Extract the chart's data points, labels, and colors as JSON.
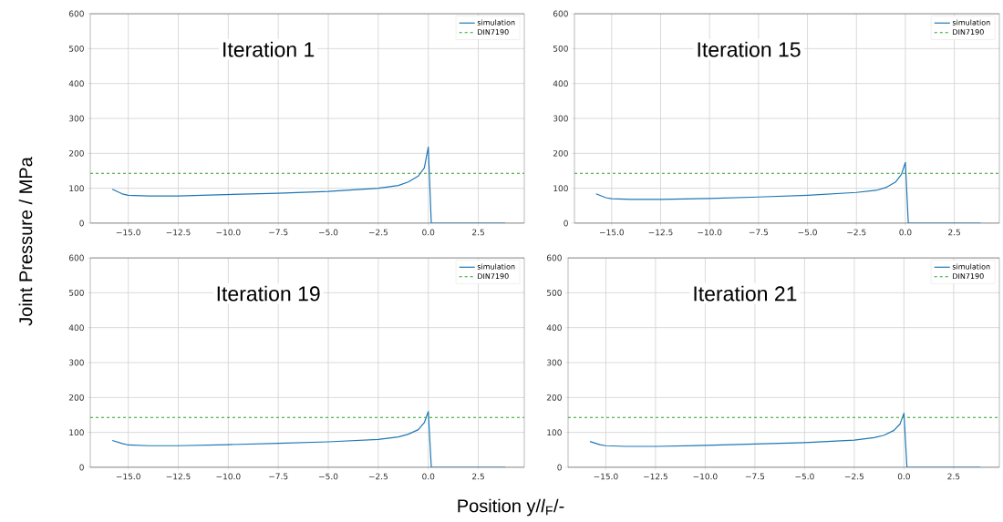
{
  "chart_data": [
    {
      "type": "line",
      "ylabel": "Joint Pressure / MPa",
      "annotations": [
        "Iteration 1"
      ],
      "xlim": [
        -16.9,
        4.8
      ],
      "ylim": [
        0,
        600
      ],
      "xticks": [
        {
          "value": -15,
          "label": "−15.0"
        },
        {
          "value": -12.5,
          "label": "−12.5"
        },
        {
          "value": -10,
          "label": "−10.0"
        },
        {
          "value": -7.5,
          "label": "−7.5"
        },
        {
          "value": -5,
          "label": "−5.0"
        },
        {
          "value": -2.5,
          "label": "−2.5"
        },
        {
          "value": 0,
          "label": "0.0"
        },
        {
          "value": 2.5,
          "label": "2.5"
        }
      ],
      "yticks": [
        0,
        100,
        200,
        300,
        400,
        500,
        600
      ],
      "grid": true,
      "legend": "top right",
      "x": [
        -15.8,
        -15.3,
        -15,
        -14,
        -12.5,
        -10,
        -7.5,
        -5,
        -2.5,
        -1.5,
        -1,
        -0.5,
        -0.2,
        0,
        0.15,
        3.85
      ],
      "series": [
        {
          "name": "simulation",
          "color": "#1f77b4",
          "values": [
            97,
            84,
            80,
            78,
            78,
            82,
            86,
            91,
            100,
            108,
            118,
            135,
            158,
            218,
            0,
            0
          ]
        }
      ],
      "ref_lines": [
        {
          "axis": "y",
          "value": 143,
          "label": "DIN7190",
          "color": "#2ca02c",
          "line_style": "dashed"
        }
      ]
    },
    {
      "type": "line",
      "annotations": [
        "Iteration 15"
      ],
      "xlim": [
        -16.9,
        4.8
      ],
      "ylim": [
        0,
        600
      ],
      "xticks": [
        {
          "value": -15,
          "label": "−15.0"
        },
        {
          "value": -12.5,
          "label": "−12.5"
        },
        {
          "value": -10,
          "label": "−10.0"
        },
        {
          "value": -7.5,
          "label": "−7.5"
        },
        {
          "value": -5,
          "label": "−5.0"
        },
        {
          "value": -2.5,
          "label": "−2.5"
        },
        {
          "value": 0,
          "label": "0.0"
        },
        {
          "value": 2.5,
          "label": "2.5"
        }
      ],
      "yticks": [
        0,
        100,
        200,
        300,
        400,
        500,
        600
      ],
      "grid": true,
      "legend": "top right",
      "x": [
        -15.8,
        -15.3,
        -15,
        -14,
        -12.5,
        -10,
        -7.5,
        -5,
        -2.5,
        -1.5,
        -1,
        -0.5,
        -0.2,
        0,
        0.15,
        3.85
      ],
      "series": [
        {
          "name": "simulation",
          "color": "#1f77b4",
          "values": [
            84,
            73,
            70,
            68,
            68,
            71,
            75,
            80,
            88,
            94,
            102,
            118,
            140,
            174,
            0,
            0
          ]
        }
      ],
      "ref_lines": [
        {
          "axis": "y",
          "value": 143,
          "label": "DIN7190",
          "color": "#2ca02c",
          "line_style": "dashed"
        }
      ]
    },
    {
      "type": "line",
      "xlabel": "Position y/*l*$_{F}$/-",
      "annotations": [
        "Iteration 19"
      ],
      "xlim": [
        -16.9,
        4.8
      ],
      "ylim": [
        0,
        600
      ],
      "xticks": [
        {
          "value": -15,
          "label": "−15.0"
        },
        {
          "value": -12.5,
          "label": "−12.5"
        },
        {
          "value": -10,
          "label": "−10.0"
        },
        {
          "value": -7.5,
          "label": "−7.5"
        },
        {
          "value": -5,
          "label": "−5.0"
        },
        {
          "value": -2.5,
          "label": "−2.5"
        },
        {
          "value": 0,
          "label": "0.0"
        },
        {
          "value": 2.5,
          "label": "2.5"
        }
      ],
      "yticks": [
        0,
        100,
        200,
        300,
        400,
        500,
        600
      ],
      "grid": true,
      "legend": "top right",
      "x": [
        -15.8,
        -15.3,
        -15,
        -14,
        -12.5,
        -10,
        -7.5,
        -5,
        -2.5,
        -1.5,
        -1,
        -0.5,
        -0.2,
        0,
        0.15,
        3.85
      ],
      "series": [
        {
          "name": "simulation",
          "color": "#1f77b4",
          "values": [
            77,
            68,
            64,
            62,
            62,
            65,
            69,
            73,
            80,
            87,
            95,
            108,
            128,
            160,
            0,
            0
          ]
        }
      ],
      "ref_lines": [
        {
          "axis": "y",
          "value": 143,
          "label": "DIN7190",
          "color": "#2ca02c",
          "line_style": "dashed"
        }
      ]
    },
    {
      "type": "line",
      "annotations": [
        "Iteration 21"
      ],
      "xlim": [
        -16.9,
        4.8
      ],
      "ylim": [
        0,
        600
      ],
      "xticks": [
        {
          "value": -15,
          "label": "−15.0"
        },
        {
          "value": -12.5,
          "label": "−12.5"
        },
        {
          "value": -10,
          "label": "−10.0"
        },
        {
          "value": -7.5,
          "label": "−7.5"
        },
        {
          "value": -5,
          "label": "−5.0"
        },
        {
          "value": -2.5,
          "label": "−2.5"
        },
        {
          "value": 0,
          "label": "0.0"
        },
        {
          "value": 2.5,
          "label": "2.5"
        }
      ],
      "yticks": [
        0,
        100,
        200,
        300,
        400,
        500,
        600
      ],
      "grid": true,
      "legend": "top right",
      "x": [
        -15.8,
        -15.3,
        -15,
        -14,
        -12.5,
        -10,
        -7.5,
        -5,
        -2.5,
        -1.5,
        -1,
        -0.5,
        -0.2,
        0,
        0.15,
        3.85
      ],
      "series": [
        {
          "name": "simulation",
          "color": "#1f77b4",
          "values": [
            74,
            65,
            62,
            60,
            60,
            63,
            67,
            71,
            78,
            85,
            92,
            106,
            124,
            155,
            0,
            0
          ]
        }
      ],
      "ref_lines": [
        {
          "axis": "y",
          "value": 143,
          "label": "DIN7190",
          "color": "#2ca02c",
          "line_style": "dashed"
        }
      ]
    }
  ]
}
